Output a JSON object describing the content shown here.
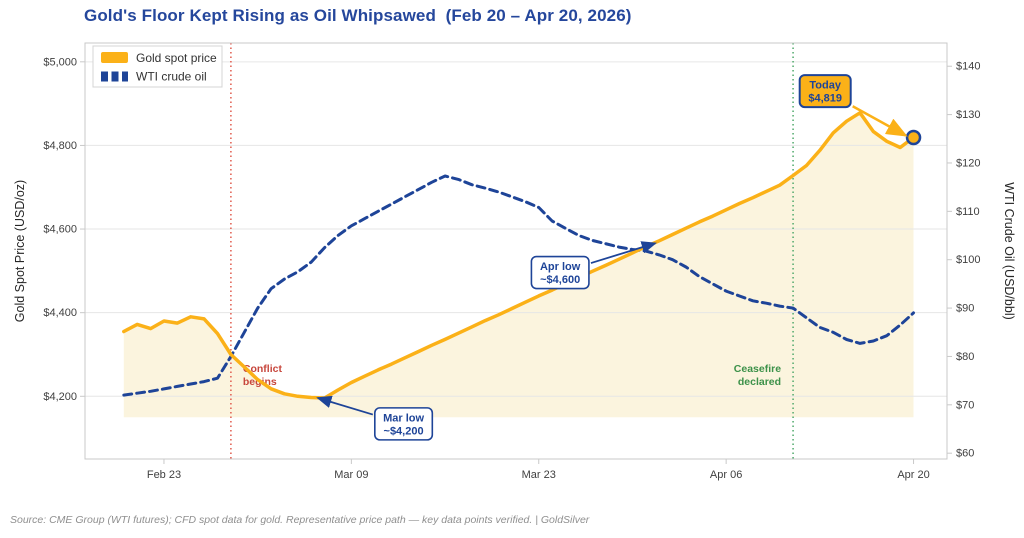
{
  "source_note": "Source: CME Group (WTI futures); CFD spot data for gold. Representative price path — key data points verified. | GoldSilver",
  "colors": {
    "gold": "#FBB118",
    "navy": "#1E4498",
    "title_text": "#25479C",
    "red_line": "#E05A4C",
    "red_text": "#C7463C",
    "green_line": "#4FA96B",
    "green_text": "#3C9149",
    "fill": "#FBF4DE",
    "grid": "#E6E6E6",
    "spine": "#C9C9C9",
    "tick_text": "#3F3F3F",
    "axis_label": "#262626",
    "source_text": "#8F8F8F",
    "legend_border": "#D4D4D4",
    "legend_text": "#333333"
  },
  "chart_data": {
    "type": "line",
    "title": "Gold's Floor Kept Rising as Oil Whipsawed  (Feb 20 – Apr 20, 2026)",
    "period": {
      "start": "Feb 20, 2026",
      "end": "Apr 20, 2026",
      "unit": "day index from Feb 20"
    },
    "x_axis": {
      "domain": [
        -2.9,
        61.5
      ],
      "ticks": [
        {
          "day": 3,
          "label": "Feb 23"
        },
        {
          "day": 17,
          "label": "Mar 09"
        },
        {
          "day": 31,
          "label": "Mar 23"
        },
        {
          "day": 45,
          "label": "Apr 06"
        },
        {
          "day": 59,
          "label": "Apr 20"
        }
      ]
    },
    "left_axis": {
      "label": "Gold Spot Price (USD/oz)",
      "domain": [
        4050,
        5045
      ],
      "ticks": [
        {
          "value": 4200,
          "label": "$4,200"
        },
        {
          "value": 4400,
          "label": "$4,400"
        },
        {
          "value": 4600,
          "label": "$4,600"
        },
        {
          "value": 4800,
          "label": "$4,800"
        },
        {
          "value": 5000,
          "label": "$5,000"
        }
      ]
    },
    "right_axis": {
      "label": "WTI Crude Oil (USD/bbl)",
      "domain": [
        58.8,
        144.8
      ],
      "ticks": [
        {
          "value": 60,
          "label": "$60"
        },
        {
          "value": 70,
          "label": "$70"
        },
        {
          "value": 80,
          "label": "$80"
        },
        {
          "value": 90,
          "label": "$90"
        },
        {
          "value": 100,
          "label": "$100"
        },
        {
          "value": 110,
          "label": "$110"
        },
        {
          "value": 120,
          "label": "$120"
        },
        {
          "value": 130,
          "label": "$130"
        },
        {
          "value": 140,
          "label": "$140"
        }
      ]
    },
    "grid": "horizontal at left-axis ticks",
    "legend": {
      "position": "top-left"
    },
    "series": [
      {
        "name": "Gold spot price",
        "axis": "left",
        "style": "solid",
        "color_key": "gold",
        "fill_to": 4150,
        "values": [
          4355,
          4372,
          4362,
          4380,
          4375,
          4390,
          4385,
          4350,
          4300,
          4270,
          4240,
          4218,
          4206,
          4200,
          4197,
          4196,
          4215,
          4233,
          4248,
          4263,
          4277,
          4292,
          4307,
          4322,
          4336,
          4351,
          4366,
          4381,
          4395,
          4410,
          4425,
          4440,
          4454,
          4469,
          4484,
          4499,
          4513,
          4528,
          4543,
          4558,
          4572,
          4587,
          4602,
          4617,
          4631,
          4646,
          4661,
          4675,
          4690,
          4705,
          4728,
          4752,
          4788,
          4830,
          4858,
          4878,
          4833,
          4810,
          4795,
          4819
        ]
      },
      {
        "name": "WTI crude oil",
        "axis": "right",
        "style": "dashed",
        "color_key": "navy",
        "values": [
          72,
          72.4,
          72.8,
          73.3,
          73.8,
          74.3,
          74.8,
          75.5,
          80,
          85,
          90,
          94,
          96,
          97.5,
          99.5,
          102.5,
          105,
          107,
          108.5,
          110,
          111.5,
          113,
          114.5,
          116,
          117.3,
          116.6,
          115.5,
          114.8,
          114,
          113,
          112,
          110.8,
          108,
          106.5,
          105,
          104,
          103.3,
          102.6,
          102.1,
          101.8,
          101,
          100,
          98.5,
          96.5,
          95,
          93.5,
          92.5,
          91.5,
          91,
          90.4,
          90,
          88,
          86,
          85,
          83.5,
          82.7,
          83.2,
          84.3,
          86.5,
          89
        ]
      }
    ],
    "vlines": [
      {
        "day": 8,
        "style": "dotted",
        "color_key": "red_line",
        "label_lines": [
          "Conflict",
          "begins"
        ],
        "label_side": "right",
        "label_color_key": "red_text",
        "label_gold_y": 4258
      },
      {
        "day": 50,
        "style": "dotted",
        "color_key": "green_line",
        "label_lines": [
          "Ceasefire",
          "declared"
        ],
        "label_side": "left",
        "label_color_key": "green_text",
        "label_gold_y": 4258
      }
    ],
    "annotations": [
      {
        "id": "mar-low",
        "lines": [
          "Mar low",
          "~$4,200"
        ],
        "box_style": "white",
        "arrow_color_key": "navy",
        "target": {
          "day": 14.5,
          "gold": 4196
        },
        "box_center": {
          "day": 20.9,
          "gold": 4134
        }
      },
      {
        "id": "apr-low",
        "lines": [
          "Apr low",
          "~$4,600"
        ],
        "box_style": "white",
        "arrow_color_key": "navy",
        "target": {
          "day": 39.7,
          "gold": 4566
        },
        "box_center": {
          "day": 32.6,
          "gold": 4496
        }
      },
      {
        "id": "today",
        "lines": [
          "Today",
          "$4,819"
        ],
        "box_style": "gold",
        "arrow_color_key": "gold",
        "target": {
          "day": 58.4,
          "gold": 4824
        },
        "box_center": {
          "day": 52.4,
          "gold": 4930
        }
      }
    ],
    "end_marker": {
      "day": 59,
      "gold": 4819
    }
  }
}
